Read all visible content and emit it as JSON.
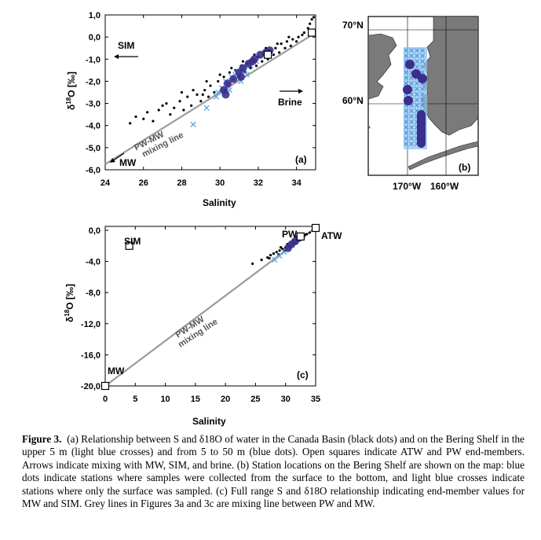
{
  "chart_data": [
    {
      "id": "a",
      "type": "scatter",
      "panel_label": "(a)",
      "xlabel": "Salinity",
      "ylabel_main": "δ",
      "ylabel_sup": "18",
      "ylabel_tail": "O [‰]",
      "xlim": [
        24,
        35
      ],
      "ylim": [
        -6,
        1
      ],
      "xticks": [
        "24",
        "26",
        "28",
        "30",
        "32",
        "34"
      ],
      "xtick_values": [
        24,
        26,
        28,
        30,
        32,
        34
      ],
      "yticks": [
        "1,0",
        "0,0",
        "-1,0",
        "-2,0",
        "-3,0",
        "-4,0",
        "-5,0",
        "-6,0"
      ],
      "ytick_values": [
        1,
        0,
        -1,
        -2,
        -3,
        -4,
        -5,
        -6
      ],
      "annotations": {
        "sim": "SIM",
        "brine": "Brine",
        "mw": "MW",
        "mixing_line_1": "PW-MW",
        "mixing_line_2": "mixing line"
      },
      "mixing_line": {
        "x": [
          24,
          35
        ],
        "y": [
          -5.75,
          0.2
        ]
      },
      "end_members": [
        {
          "name": "PW",
          "x": 32.5,
          "y": -0.8
        },
        {
          "name": "ATW",
          "x": 34.8,
          "y": 0.2
        }
      ],
      "series": [
        {
          "name": "Canada Basin",
          "marker": "dot",
          "color": "#000000",
          "points": [
            [
              25.6,
              -3.6
            ],
            [
              26.2,
              -3.4
            ],
            [
              26.5,
              -3.8
            ],
            [
              26.8,
              -3.3
            ],
            [
              27.2,
              -3.0
            ],
            [
              27.4,
              -3.5
            ],
            [
              27.6,
              -3.2
            ],
            [
              27.9,
              -2.9
            ],
            [
              28.1,
              -3.3
            ],
            [
              28.3,
              -2.7
            ],
            [
              28.5,
              -3.1
            ],
            [
              28.8,
              -2.6
            ],
            [
              29.0,
              -2.9
            ],
            [
              29.2,
              -2.4
            ],
            [
              29.4,
              -2.7
            ],
            [
              29.5,
              -2.2
            ],
            [
              29.7,
              -2.5
            ],
            [
              29.9,
              -2.0
            ],
            [
              30.1,
              -2.3
            ],
            [
              30.2,
              -1.8
            ],
            [
              30.4,
              -2.1
            ],
            [
              30.5,
              -1.6
            ],
            [
              30.7,
              -1.9
            ],
            [
              30.8,
              -1.5
            ],
            [
              31.0,
              -1.8
            ],
            [
              31.1,
              -1.3
            ],
            [
              31.3,
              -1.6
            ],
            [
              31.4,
              -1.2
            ],
            [
              31.6,
              -1.4
            ],
            [
              31.7,
              -1.0
            ],
            [
              31.9,
              -1.3
            ],
            [
              32.0,
              -0.9
            ],
            [
              32.2,
              -1.1
            ],
            [
              32.3,
              -0.8
            ],
            [
              32.5,
              -1.0
            ],
            [
              32.6,
              -0.6
            ],
            [
              32.8,
              -0.8
            ],
            [
              32.9,
              -0.5
            ],
            [
              33.1,
              -0.7
            ],
            [
              33.2,
              -0.3
            ],
            [
              33.4,
              -0.5
            ],
            [
              33.5,
              -0.2
            ],
            [
              33.7,
              -0.4
            ],
            [
              33.8,
              -0.1
            ],
            [
              34.0,
              -0.2
            ],
            [
              34.1,
              0.0
            ],
            [
              34.3,
              0.1
            ],
            [
              34.4,
              0.2
            ],
            [
              34.6,
              0.4
            ],
            [
              34.7,
              0.6
            ],
            [
              34.8,
              0.8
            ],
            [
              34.9,
              0.9
            ],
            [
              28.0,
              -2.5
            ],
            [
              28.6,
              -2.4
            ],
            [
              29.3,
              -2.0
            ],
            [
              30.0,
              -1.7
            ],
            [
              30.6,
              -1.4
            ],
            [
              31.2,
              -1.1
            ],
            [
              31.8,
              -0.8
            ],
            [
              32.4,
              -0.5
            ],
            [
              33.0,
              -0.3
            ],
            [
              33.6,
              0.0
            ],
            [
              30.3,
              -2.4
            ],
            [
              29.1,
              -2.6
            ],
            [
              27.0,
              -3.1
            ],
            [
              26.0,
              -3.7
            ],
            [
              25.3,
              -3.9
            ]
          ]
        },
        {
          "name": "Bering Shelf surface",
          "marker": "cross",
          "color": "#5aa7e8",
          "points": [
            [
              28.6,
              -3.95
            ],
            [
              29.3,
              -3.2
            ],
            [
              29.8,
              -2.7
            ],
            [
              30.1,
              -2.3
            ],
            [
              30.3,
              -2.0
            ],
            [
              30.6,
              -1.8
            ],
            [
              30.9,
              -1.6
            ],
            [
              31.2,
              -1.4
            ],
            [
              31.5,
              -1.2
            ],
            [
              31.8,
              -1.0
            ],
            [
              30.4,
              -2.2
            ],
            [
              30.8,
              -1.7
            ],
            [
              31.0,
              -1.9
            ],
            [
              31.3,
              -1.5
            ],
            [
              31.6,
              -1.3
            ],
            [
              31.9,
              -1.1
            ],
            [
              29.9,
              -2.5
            ],
            [
              30.5,
              -2.4
            ],
            [
              31.1,
              -2.0
            ],
            [
              31.4,
              -1.7
            ]
          ]
        },
        {
          "name": "Bering Shelf 5-50 m",
          "marker": "circle",
          "color": "#3a2f8c",
          "points": [
            [
              30.2,
              -2.4
            ],
            [
              30.4,
              -2.1
            ],
            [
              30.7,
              -1.9
            ],
            [
              31.0,
              -1.6
            ],
            [
              31.2,
              -1.4
            ],
            [
              31.5,
              -1.2
            ],
            [
              31.8,
              -1.0
            ],
            [
              32.1,
              -0.8
            ],
            [
              32.4,
              -0.7
            ],
            [
              32.6,
              -0.6
            ],
            [
              30.3,
              -2.6
            ],
            [
              31.1,
              -1.8
            ],
            [
              31.7,
              -1.1
            ]
          ]
        }
      ]
    },
    {
      "id": "c",
      "type": "scatter",
      "panel_label": "(c)",
      "xlabel": "Salinity",
      "ylabel_main": "δ",
      "ylabel_sup": "18",
      "ylabel_tail": "O [‰]",
      "xlim": [
        0,
        35
      ],
      "ylim": [
        -20,
        0.5
      ],
      "xticks": [
        "0",
        "5",
        "10",
        "15",
        "20",
        "25",
        "30",
        "35"
      ],
      "xtick_values": [
        0,
        5,
        10,
        15,
        20,
        25,
        30,
        35
      ],
      "yticks": [
        "0,0",
        "-4,0",
        "-8,0",
        "-12,0",
        "-16,0",
        "-20,0"
      ],
      "ytick_values": [
        0,
        -4,
        -8,
        -12,
        -16,
        -20
      ],
      "annotations": {
        "sim": "SIM",
        "mw": "MW",
        "pw": "PW",
        "atw": "ATW",
        "mixing_line_1": "PW-MW",
        "mixing_line_2": "mixing line"
      },
      "mixing_line": {
        "x": [
          0,
          35
        ],
        "y": [
          -20,
          0.3
        ]
      },
      "end_members": [
        {
          "name": "SIM",
          "x": 4,
          "y": -2.0
        },
        {
          "name": "MW",
          "x": 0,
          "y": -20
        },
        {
          "name": "PW",
          "x": 32.5,
          "y": -0.8
        },
        {
          "name": "ATW",
          "x": 35,
          "y": 0.3
        }
      ],
      "series": [
        {
          "name": "Canada Basin",
          "marker": "dot",
          "color": "#000000",
          "points": [
            [
              24.5,
              -4.3
            ],
            [
              26.0,
              -3.8
            ],
            [
              27.0,
              -3.5
            ],
            [
              27.5,
              -3.2
            ],
            [
              28.0,
              -3.0
            ],
            [
              28.5,
              -2.8
            ],
            [
              29.0,
              -2.6
            ],
            [
              29.5,
              -2.4
            ],
            [
              30.0,
              -2.2
            ],
            [
              30.5,
              -2.0
            ],
            [
              31.0,
              -1.8
            ],
            [
              31.5,
              -1.5
            ],
            [
              32.0,
              -1.2
            ],
            [
              32.5,
              -1.0
            ],
            [
              33.0,
              -0.8
            ],
            [
              33.5,
              -0.5
            ],
            [
              34.0,
              -0.3
            ],
            [
              34.5,
              0.0
            ],
            [
              28.8,
              -3.1
            ],
            [
              29.8,
              -2.7
            ],
            [
              30.8,
              -2.2
            ],
            [
              31.8,
              -1.7
            ],
            [
              27.3,
              -3.6
            ],
            [
              29.2,
              -2.2
            ],
            [
              30.3,
              -1.8
            ],
            [
              31.2,
              -1.3
            ],
            [
              32.2,
              -0.9
            ],
            [
              33.2,
              -0.6
            ]
          ]
        },
        {
          "name": "Bering Shelf surface",
          "marker": "cross",
          "color": "#5aa7e8",
          "points": [
            [
              28.2,
              -3.8
            ],
            [
              29.0,
              -3.3
            ],
            [
              29.8,
              -2.8
            ],
            [
              30.4,
              -2.3
            ],
            [
              31.0,
              -1.9
            ],
            [
              31.6,
              -1.4
            ],
            [
              32.0,
              -1.1
            ]
          ]
        },
        {
          "name": "Bering Shelf 5-50 m",
          "marker": "circle",
          "color": "#3a2f8c",
          "points": [
            [
              30.4,
              -2.3
            ],
            [
              31.0,
              -1.8
            ],
            [
              31.6,
              -1.4
            ],
            [
              32.2,
              -1.0
            ],
            [
              32.6,
              -0.8
            ]
          ]
        }
      ]
    }
  ],
  "map": {
    "panel_label": "(b)",
    "lat_labels": [
      "70°N",
      "60°N"
    ],
    "lon_labels": [
      "170°W",
      "160°W"
    ]
  },
  "caption": {
    "figure": "Figure 3.",
    "text": "(a) Relationship between S and δ18O of water in the Canada Basin (black dots) and on the Bering Shelf in the upper 5 m (light blue crosses) and from 5 to 50 m (blue dots). Open squares indicate ATW and PW end-members. Arrows indicate mixing with MW, SIM, and brine. (b) Station locations on the Bering Shelf are shown on the map: blue dots indicate stations where samples were collected from the surface to the bottom, and light blue crosses indicate stations where only the surface was sampled. (c) Full range S and δ18O relationship indicating end-member values for MW and SIM. Grey lines in Figures 3a and 3c are mixing line between PW and MW."
  }
}
